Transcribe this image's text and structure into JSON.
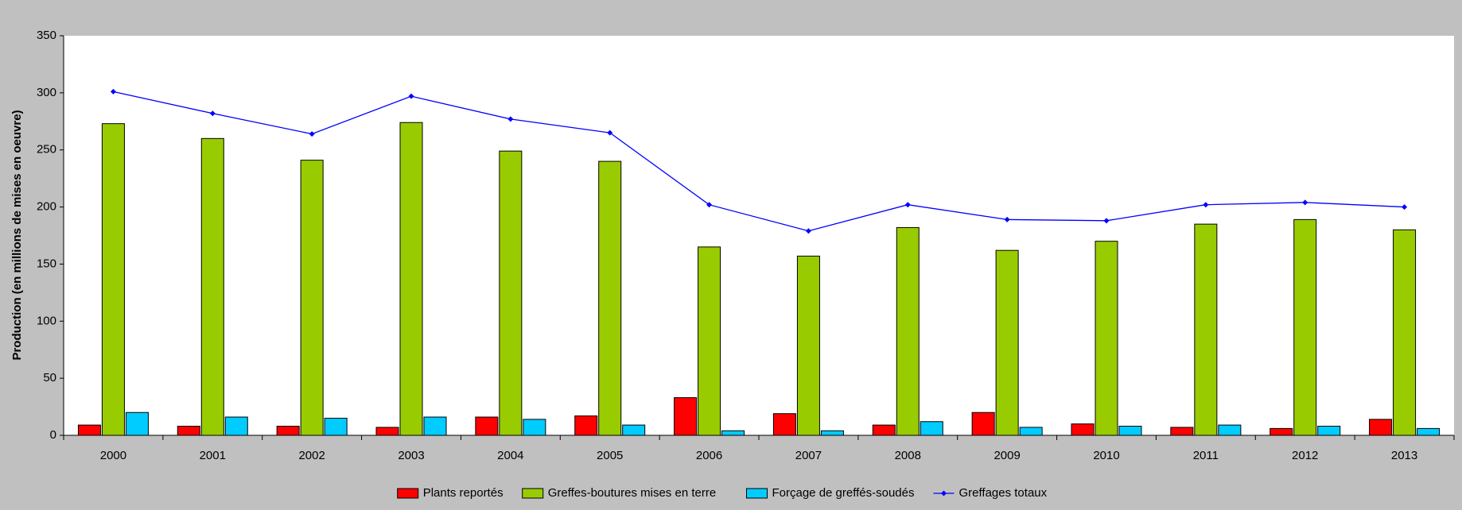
{
  "chart_data": {
    "type": "bar",
    "y_label": "Production (en millions de mises en oeuvre)",
    "categories": [
      "2000",
      "2001",
      "2002",
      "2003",
      "2004",
      "2005",
      "2006",
      "2007",
      "2008",
      "2009",
      "2010",
      "2011",
      "2012",
      "2013"
    ],
    "series": [
      {
        "name": "Plants reportés",
        "type": "bar",
        "color": "#ff0000",
        "values": [
          9,
          8,
          8,
          7,
          16,
          17,
          33,
          19,
          9,
          20,
          10,
          7,
          6,
          14
        ]
      },
      {
        "name": "Greffes-boutures mises en terre",
        "type": "bar",
        "color": "#99cc00",
        "values": [
          273,
          260,
          241,
          274,
          249,
          240,
          165,
          157,
          182,
          162,
          170,
          185,
          189,
          180
        ]
      },
      {
        "name": "Forçage de greffés-soudés",
        "type": "bar",
        "color": "#00ccff",
        "values": [
          20,
          16,
          15,
          16,
          14,
          9,
          4,
          4,
          12,
          7,
          8,
          9,
          8,
          6
        ]
      },
      {
        "name": "Greffages totaux",
        "type": "line",
        "color": "#0000ff",
        "values": [
          301,
          282,
          264,
          297,
          277,
          265,
          202,
          179,
          202,
          189,
          188,
          202,
          204,
          200
        ]
      }
    ],
    "ylim": [
      0,
      350
    ],
    "yticks": [
      0,
      50,
      100,
      150,
      200,
      250,
      300,
      350
    ],
    "grid": false,
    "legend": "bottom"
  }
}
